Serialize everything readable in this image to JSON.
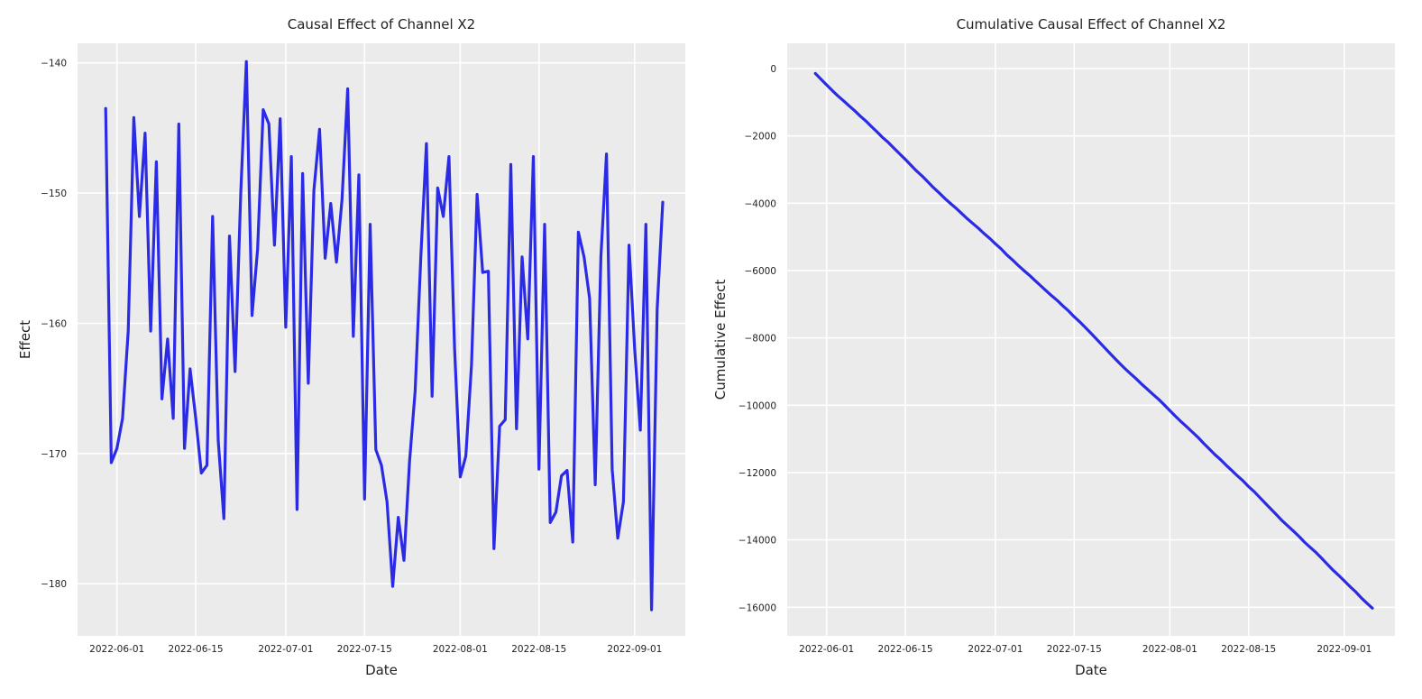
{
  "chart_data": [
    {
      "type": "line",
      "title": "Causal Effect of Channel X2",
      "xlabel": "Date",
      "ylabel": "Effect",
      "xlim": [
        "2022-05-25",
        "2022-09-10"
      ],
      "ylim": [
        -184,
        -138.5
      ],
      "grid": true,
      "x_ticks": [
        "2022-06-01",
        "2022-06-15",
        "2022-07-01",
        "2022-07-15",
        "2022-08-01",
        "2022-08-15",
        "2022-09-01"
      ],
      "y_ticks": [
        -140,
        -150,
        -160,
        -170,
        -180
      ],
      "series": [
        {
          "color": "#2b2be6",
          "x_start": "2022-05-30",
          "values": [
            -143.5,
            -170.7,
            -169.6,
            -167.3,
            -160.6,
            -144.2,
            -151.8,
            -145.4,
            -160.6,
            -147.6,
            -165.8,
            -161.2,
            -167.3,
            -144.7,
            -169.6,
            -163.5,
            -167.3,
            -171.5,
            -170.9,
            -151.8,
            -169.0,
            -175.0,
            -153.3,
            -163.7,
            -150.0,
            -139.9,
            -159.4,
            -154.3,
            -143.6,
            -144.7,
            -154.0,
            -144.3,
            -160.3,
            -147.2,
            -174.3,
            -148.5,
            -164.6,
            -149.8,
            -145.1,
            -155.0,
            -150.8,
            -155.3,
            -150.5,
            -142.0,
            -161.0,
            -148.6,
            -173.5,
            -152.4,
            -169.7,
            -170.9,
            -173.7,
            -180.2,
            -174.9,
            -178.2,
            -170.6,
            -165.2,
            -154.9,
            -146.2,
            -165.6,
            -149.6,
            -151.8,
            -147.2,
            -161.9,
            -171.8,
            -170.2,
            -163.2,
            -150.1,
            -156.1,
            -156.0,
            -177.3,
            -167.9,
            -167.4,
            -147.8,
            -168.1,
            -154.9,
            -161.2,
            -147.2,
            -171.2,
            -152.4,
            -175.3,
            -174.5,
            -171.7,
            -171.3,
            -176.8,
            -153.0,
            -154.9,
            -158.1,
            -172.4,
            -154.9,
            -147.0,
            -171.2,
            -176.5,
            -173.7,
            -154.0,
            -161.9,
            -168.2,
            -152.4,
            -182.0,
            -158.9,
            -150.7
          ]
        }
      ]
    },
    {
      "type": "line",
      "title": "Cumulative Causal Effect of Channel X2",
      "xlabel": "Date",
      "ylabel": "Cumulative Effect",
      "xlim": [
        "2022-05-25",
        "2022-09-10"
      ],
      "ylim": [
        -16850,
        750
      ],
      "grid": true,
      "x_ticks": [
        "2022-06-01",
        "2022-06-15",
        "2022-07-01",
        "2022-07-15",
        "2022-08-01",
        "2022-08-15",
        "2022-09-01"
      ],
      "y_ticks": [
        0,
        -2000,
        -4000,
        -6000,
        -8000,
        -10000,
        -12000,
        -14000,
        -16000
      ],
      "series": [
        {
          "color": "#2b2be6",
          "cumulative_of": 0
        }
      ]
    }
  ]
}
